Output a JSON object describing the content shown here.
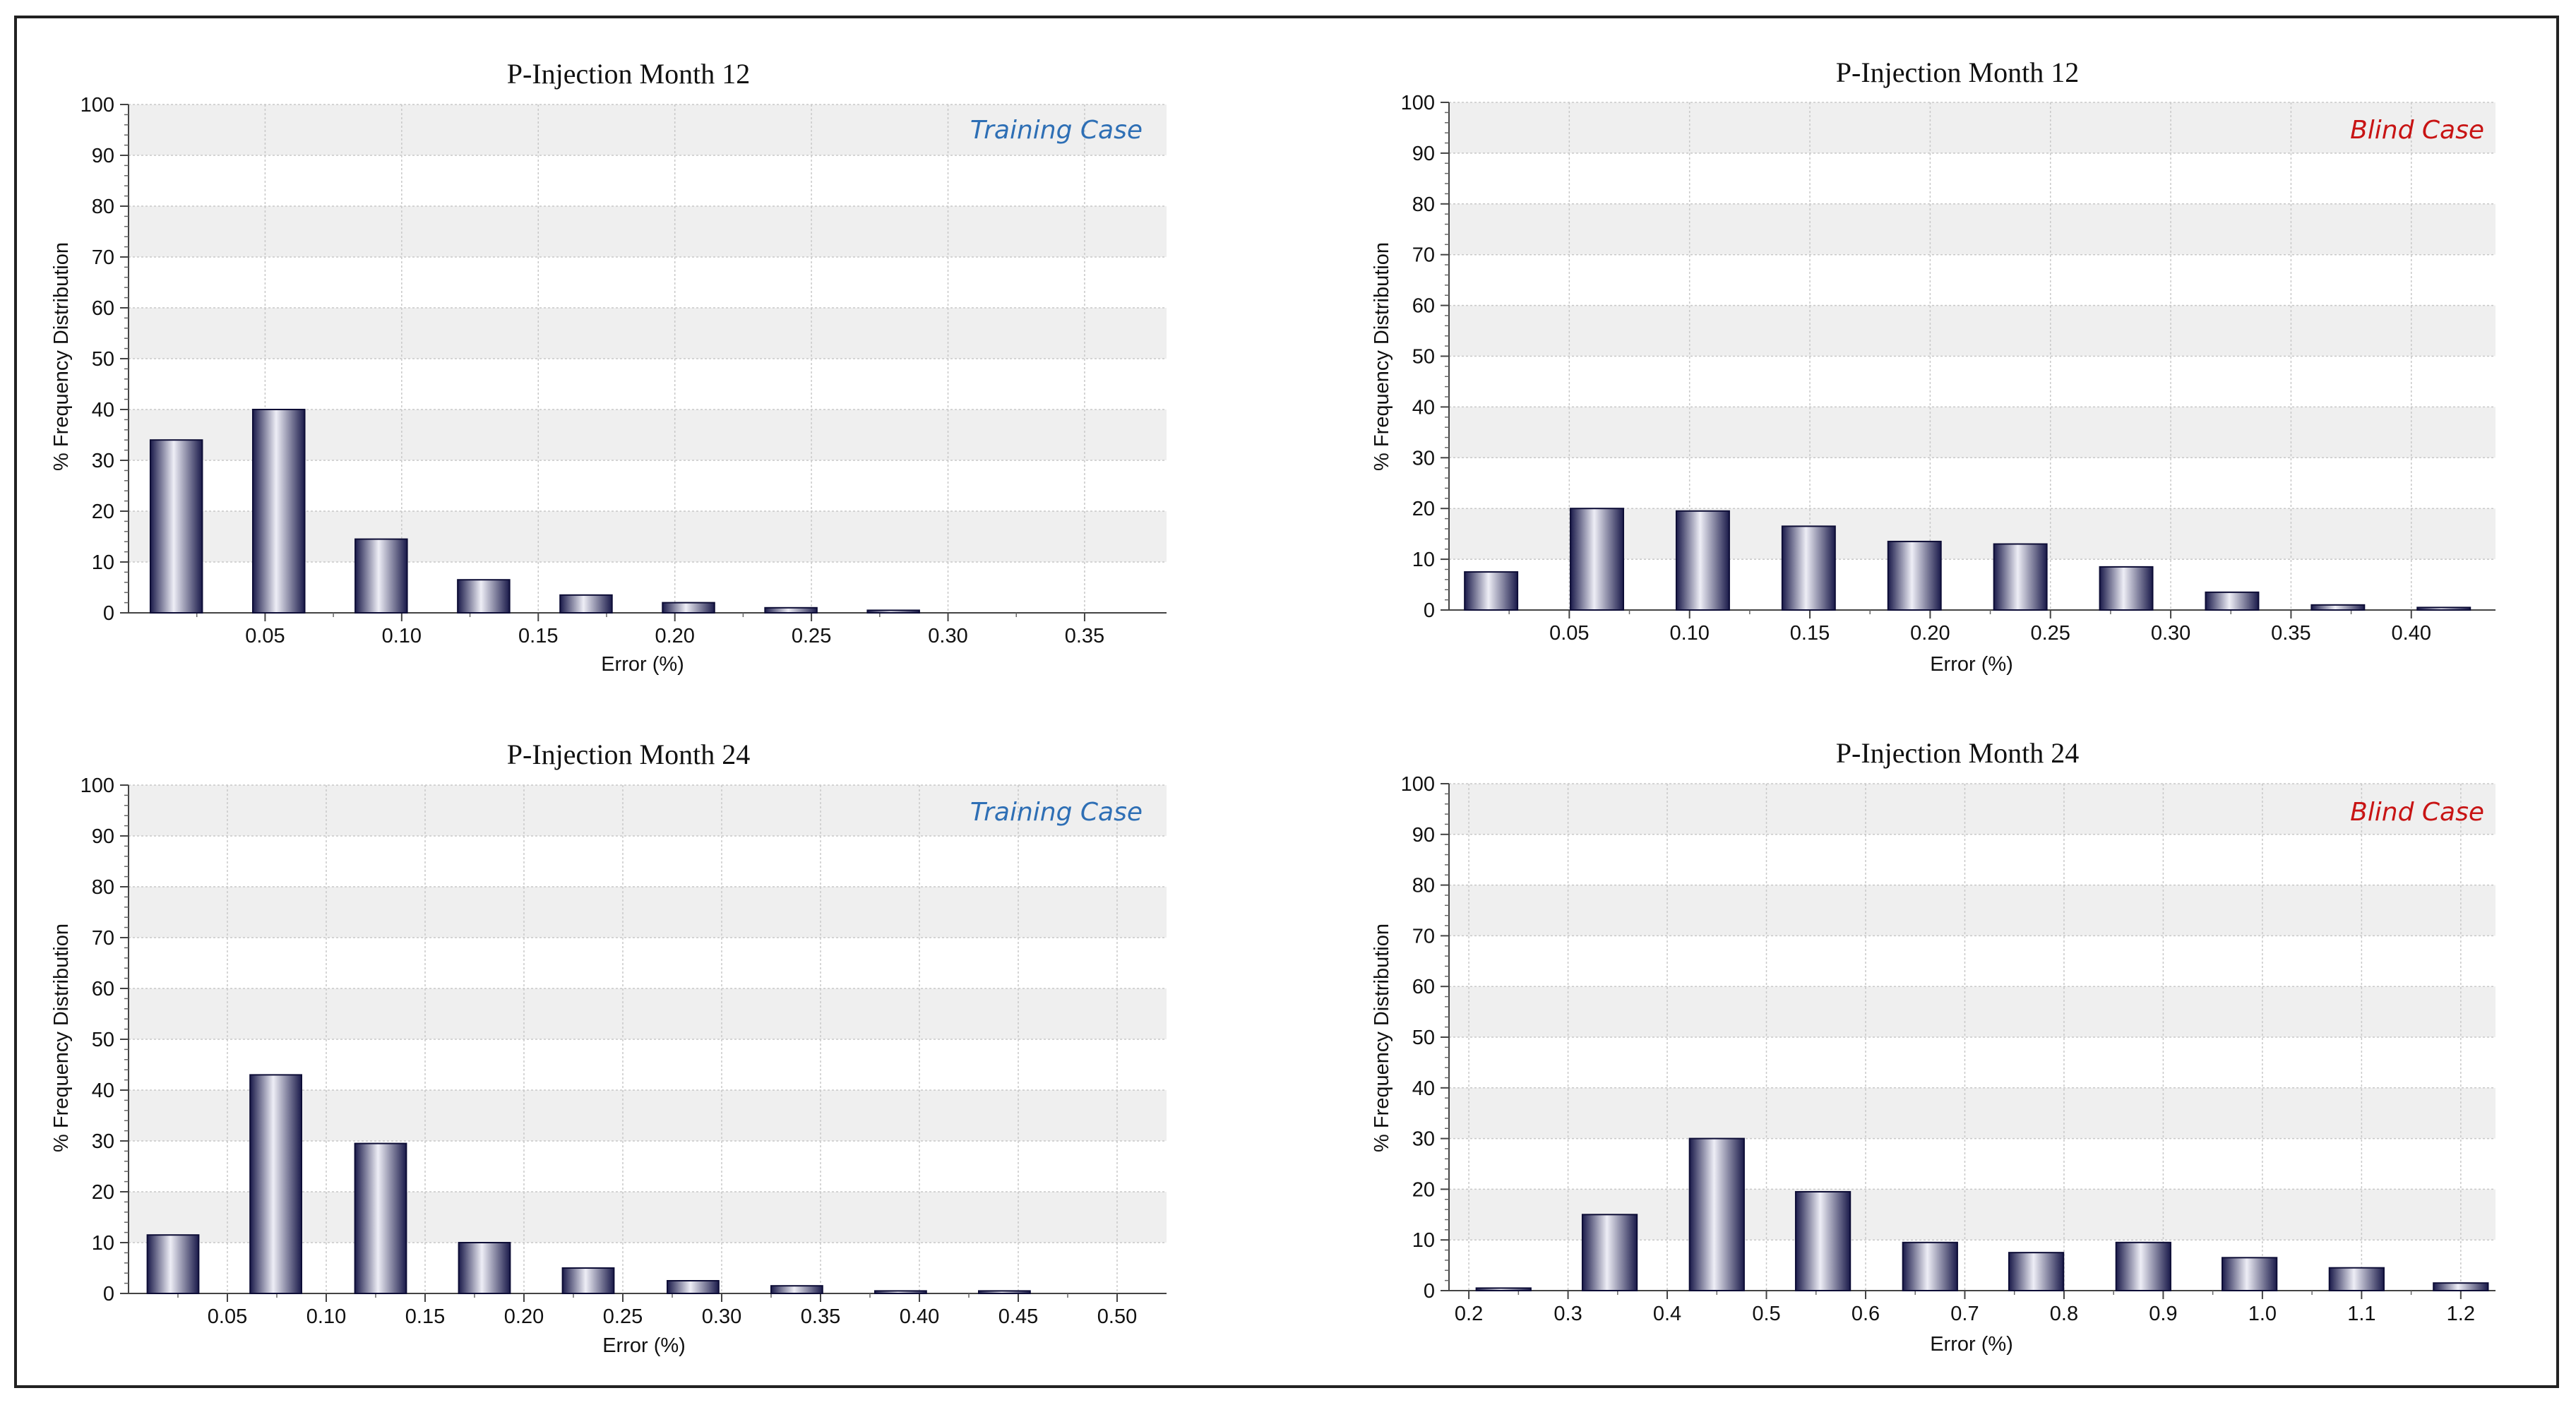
{
  "figure": {
    "colors": {
      "bar_edge": "#0d0d36",
      "bar_dark": "#1a1a4a",
      "bar_light": "#eeeef6",
      "band": "#efefef",
      "grid": "#c8c8c8",
      "training": "#2e6fb5",
      "blind": "#c81414"
    }
  },
  "chart_data": [
    {
      "type": "bar",
      "title": "P-Injection Month 12",
      "case_label": "Training Case",
      "case_color": "#2e6fb5",
      "xlabel": "Error (%)",
      "ylabel": "% Frequency Distribution",
      "ylim": [
        0,
        100
      ],
      "yticks": [
        "0",
        "10",
        "20",
        "30",
        "40",
        "50",
        "60",
        "70",
        "80",
        "90",
        "100"
      ],
      "xlim": [
        0,
        0.38
      ],
      "xtick_values": [
        0.05,
        0.1,
        0.15,
        0.2,
        0.25,
        0.3,
        0.35
      ],
      "xtick_labels": [
        "0.05",
        "0.10",
        "0.15",
        "0.20",
        "0.25",
        "0.30",
        "0.35"
      ],
      "bar_width": 0.019,
      "bar_x": [
        0.0175,
        0.055,
        0.0925,
        0.13,
        0.1675,
        0.205,
        0.2425,
        0.28
      ],
      "values": [
        34,
        40,
        14.5,
        6.5,
        3.5,
        2,
        1,
        0.5
      ]
    },
    {
      "type": "bar",
      "title": "P-Injection Month 12",
      "case_label": "Blind Case",
      "case_color": "#c81414",
      "xlabel": "Error (%)",
      "ylabel": "% Frequency Distribution",
      "ylim": [
        0,
        100
      ],
      "yticks": [
        "0",
        "10",
        "20",
        "30",
        "40",
        "50",
        "60",
        "70",
        "80",
        "90",
        "100"
      ],
      "xlim": [
        0,
        0.435
      ],
      "xtick_values": [
        0.05,
        0.1,
        0.15,
        0.2,
        0.25,
        0.3,
        0.35,
        0.4
      ],
      "xtick_labels": [
        "0.05",
        "0.10",
        "0.15",
        "0.20",
        "0.25",
        "0.30",
        "0.35",
        "0.40"
      ],
      "bar_width": 0.022,
      "bar_x": [
        0.0175,
        0.0615,
        0.1055,
        0.1495,
        0.1935,
        0.2375,
        0.2815,
        0.3255,
        0.3695,
        0.4135
      ],
      "values": [
        7.5,
        20,
        19.5,
        16.5,
        13.5,
        13,
        8.5,
        3.5,
        1,
        0.5
      ]
    },
    {
      "type": "bar",
      "title": "P-Injection Month 24",
      "case_label": "Training Case",
      "case_color": "#2e6fb5",
      "xlabel": "Error (%)",
      "ylabel": "% Frequency Distribution",
      "ylim": [
        0,
        100
      ],
      "yticks": [
        "0",
        "10",
        "20",
        "30",
        "40",
        "50",
        "60",
        "70",
        "80",
        "90",
        "100"
      ],
      "xlim": [
        0,
        0.525
      ],
      "xtick_values": [
        0.05,
        0.1,
        0.15,
        0.2,
        0.25,
        0.3,
        0.35,
        0.4,
        0.45,
        0.5
      ],
      "xtick_labels": [
        "0.05",
        "0.10",
        "0.15",
        "0.20",
        "0.25",
        "0.30",
        "0.35",
        "0.40",
        "0.45",
        "0.50"
      ],
      "bar_width": 0.026,
      "bar_x": [
        0.0225,
        0.0745,
        0.1275,
        0.18,
        0.2325,
        0.2855,
        0.338,
        0.3905,
        0.443
      ],
      "values": [
        11.5,
        43,
        29.5,
        10,
        5,
        2.5,
        1.5,
        0.5,
        0.5
      ]
    },
    {
      "type": "bar",
      "title": "P-Injection Month 24",
      "case_label": "Blind Case",
      "case_color": "#c81414",
      "xlabel": "Error (%)",
      "ylabel": "% Frequency Distribution",
      "ylim": [
        0,
        100
      ],
      "yticks": [
        "0",
        "10",
        "20",
        "30",
        "40",
        "50",
        "60",
        "70",
        "80",
        "90",
        "100"
      ],
      "xlim": [
        0.18,
        1.235
      ],
      "xtick_values": [
        0.2,
        0.3,
        0.4,
        0.5,
        0.6,
        0.7,
        0.8,
        0.9,
        1.0,
        1.1,
        1.2
      ],
      "xtick_labels": [
        "0.2",
        "0.3",
        "0.4",
        "0.5",
        "0.6",
        "0.7",
        "0.8",
        "0.9",
        "1.0",
        "1.1",
        "1.2"
      ],
      "bar_width": 0.055,
      "bar_x": [
        0.235,
        0.342,
        0.45,
        0.557,
        0.665,
        0.772,
        0.88,
        0.987,
        1.095,
        1.2
      ],
      "values": [
        0.5,
        15,
        30,
        19.5,
        9.5,
        7.5,
        9.5,
        6.5,
        4.5,
        1.5
      ]
    }
  ]
}
